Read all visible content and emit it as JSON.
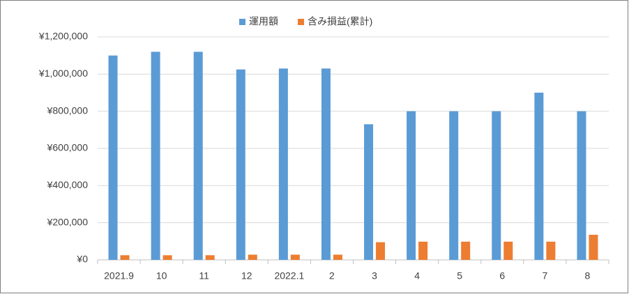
{
  "chart_data": {
    "type": "bar",
    "categories": [
      "2021.9",
      "10",
      "11",
      "12",
      "2022.1",
      "2",
      "3",
      "4",
      "5",
      "6",
      "7",
      "8"
    ],
    "series": [
      {
        "name": "運用額",
        "color": "#5b9bd5",
        "values": [
          1100000,
          1120000,
          1120000,
          1025000,
          1030000,
          1030000,
          730000,
          800000,
          800000,
          800000,
          900000,
          800000
        ]
      },
      {
        "name": "含み損益(累計)",
        "color": "#ed7d31",
        "values": [
          25000,
          25000,
          25000,
          28000,
          28000,
          28000,
          95000,
          98000,
          98000,
          98000,
          98000,
          135000
        ]
      }
    ],
    "ylim": [
      0,
      1200000
    ],
    "yticks": [
      {
        "value": 0,
        "label": "¥0"
      },
      {
        "value": 200000,
        "label": "¥200,000"
      },
      {
        "value": 400000,
        "label": "¥400,000"
      },
      {
        "value": 600000,
        "label": "¥600,000"
      },
      {
        "value": 800000,
        "label": "¥800,000"
      },
      {
        "value": 1000000,
        "label": "¥1,000,000"
      },
      {
        "value": 1200000,
        "label": "¥1,200,000"
      }
    ],
    "grid": true,
    "legend": "top"
  }
}
